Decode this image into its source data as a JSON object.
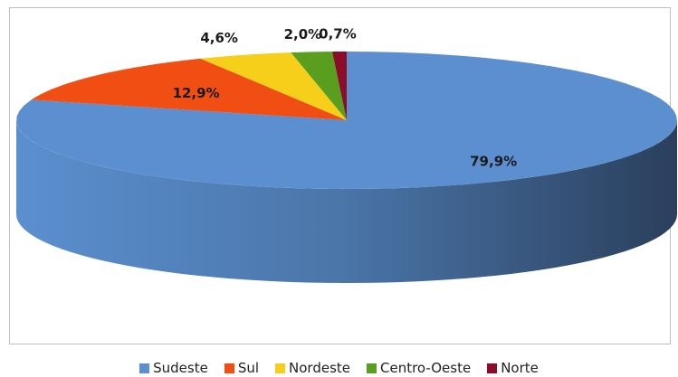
{
  "chart_data": {
    "type": "pie",
    "three_d": true,
    "categories": [
      "Sudeste",
      "Sul",
      "Nordeste",
      "Centro-Oeste",
      "Norte"
    ],
    "values": [
      79.9,
      12.9,
      4.6,
      2.0,
      0.7
    ],
    "value_labels": [
      "79,9%",
      "12,9%",
      "4,6%",
      "2,0%",
      "0,7%"
    ],
    "colors": [
      "#5b8fcf",
      "#f04e12",
      "#f5cf1a",
      "#5a9e1f",
      "#8c0d2a"
    ],
    "legend": "bottom"
  }
}
